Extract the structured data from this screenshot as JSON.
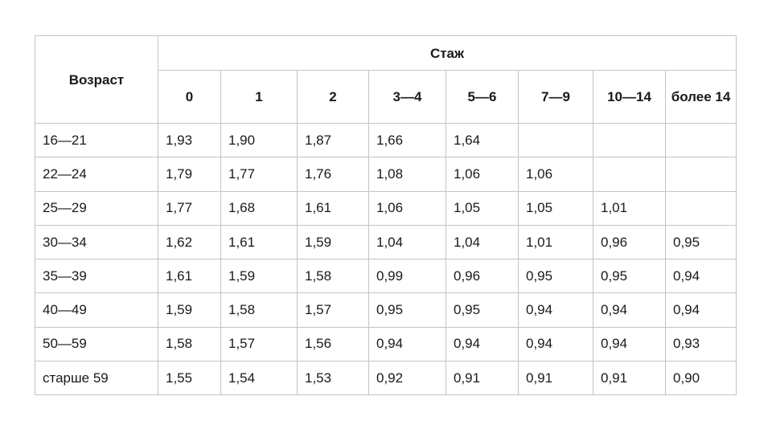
{
  "table": {
    "age_header": "Возраст",
    "experience_header": "Стаж",
    "experience_columns": [
      "0",
      "1",
      "2",
      "3—4",
      "5—6",
      "7—9",
      "10—14",
      "более 14"
    ],
    "rows": [
      {
        "age": "16—21",
        "values": [
          "1,93",
          "1,90",
          "1,87",
          "1,66",
          "1,64",
          "",
          "",
          ""
        ]
      },
      {
        "age": "22—24",
        "values": [
          "1,79",
          "1,77",
          "1,76",
          "1,08",
          "1,06",
          "1,06",
          "",
          ""
        ]
      },
      {
        "age": "25—29",
        "values": [
          "1,77",
          "1,68",
          "1,61",
          "1,06",
          "1,05",
          "1,05",
          "1,01",
          ""
        ]
      },
      {
        "age": "30—34",
        "values": [
          "1,62",
          "1,61",
          "1,59",
          "1,04",
          "1,04",
          "1,01",
          "0,96",
          "0,95"
        ]
      },
      {
        "age": "35—39",
        "values": [
          "1,61",
          "1,59",
          "1,58",
          "0,99",
          "0,96",
          "0,95",
          "0,95",
          "0,94"
        ]
      },
      {
        "age": "40—49",
        "values": [
          "1,59",
          "1,58",
          "1,57",
          "0,95",
          "0,95",
          "0,94",
          "0,94",
          "0,94"
        ]
      },
      {
        "age": "50—59",
        "values": [
          "1,58",
          "1,57",
          "1,56",
          "0,94",
          "0,94",
          "0,94",
          "0,94",
          "0,93"
        ]
      },
      {
        "age": "старше 59",
        "values": [
          "1,55",
          "1,54",
          "1,53",
          "0,92",
          "0,91",
          "0,91",
          "0,91",
          "0,90"
        ]
      }
    ]
  }
}
